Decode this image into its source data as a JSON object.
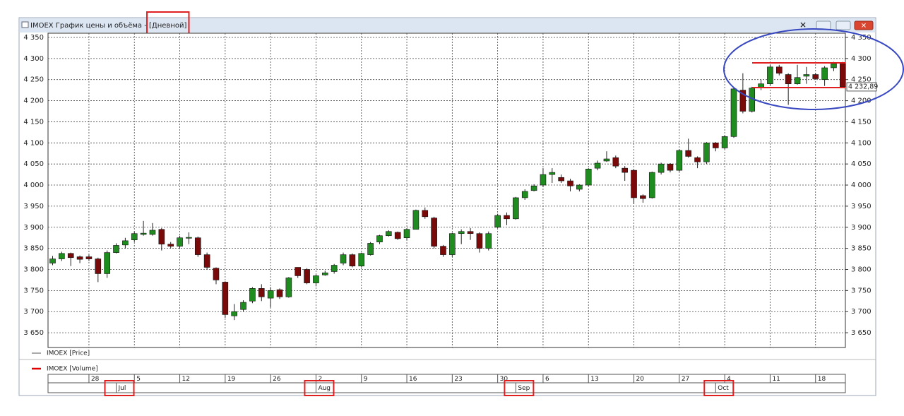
{
  "chart_data": {
    "type": "candlestick",
    "title": "IMOEX График цены и объёма - ",
    "period": "[Дневной]",
    "categories": [
      null,
      null,
      null,
      null,
      "28",
      null,
      null,
      null,
      null,
      "5",
      null,
      null,
      null,
      null,
      "12",
      null,
      null,
      null,
      null,
      "19",
      null,
      null,
      null,
      null,
      "26",
      null,
      null,
      null,
      null,
      "2",
      null,
      null,
      null,
      null,
      "9",
      null,
      null,
      null,
      null,
      "16",
      null,
      null,
      null,
      null,
      "23",
      null,
      null,
      null,
      null,
      "30",
      null,
      null,
      null,
      null,
      "6",
      null,
      null,
      null,
      null,
      "13",
      null,
      null,
      null,
      null,
      "20",
      null,
      null,
      null,
      null,
      "27",
      null,
      null,
      null,
      null,
      "4",
      null,
      null,
      null,
      null,
      "11",
      null,
      null,
      null,
      null,
      "18",
      null,
      null,
      null
    ],
    "months": [
      "Jul",
      "Aug",
      "Sep",
      "Oct"
    ],
    "open": [
      3815,
      3825,
      3838,
      3830,
      3830,
      3825,
      3790,
      3840,
      3858,
      3870,
      3883,
      3883,
      3895,
      3860,
      3855,
      3874,
      3875,
      3835,
      3803,
      3770,
      3690,
      3705,
      3725,
      3755,
      3732,
      3752,
      3735,
      3805,
      3800,
      3768,
      3787,
      3795,
      3815,
      3835,
      3808,
      3835,
      3865,
      3880,
      3888,
      3875,
      3895,
      3940,
      3922,
      3855,
      3835,
      3885,
      3890,
      3885,
      3850,
      3900,
      3928,
      3920,
      3970,
      3987,
      4000,
      4025,
      4018,
      4010,
      3990,
      4000,
      4040,
      4057,
      4065,
      4040,
      4035,
      3975,
      3970,
      4030,
      4050,
      4035,
      4082,
      4065,
      4055,
      4100,
      4088,
      4115,
      4225,
      4175,
      4230,
      4240,
      4280,
      4262,
      4240,
      4258,
      4262,
      4250,
      4278,
      4288
    ],
    "high": [
      3832,
      3842,
      3840,
      3833,
      3835,
      3828,
      3845,
      3862,
      3875,
      3890,
      3915,
      3910,
      3898,
      3865,
      3880,
      3888,
      3878,
      3840,
      3805,
      3772,
      3718,
      3727,
      3758,
      3765,
      3758,
      3755,
      3782,
      3805,
      3803,
      3788,
      3797,
      3813,
      3840,
      3838,
      3840,
      3865,
      3882,
      3893,
      3890,
      3898,
      3942,
      3947,
      3925,
      3858,
      3887,
      3895,
      3898,
      3888,
      3890,
      3932,
      3935,
      3972,
      3990,
      4002,
      4040,
      4040,
      4025,
      4015,
      4002,
      4040,
      4058,
      4080,
      4070,
      4045,
      4038,
      3978,
      4032,
      4053,
      4052,
      4085,
      4110,
      4068,
      4102,
      4102,
      4118,
      4230,
      4265,
      4233,
      4250,
      4285,
      4285,
      4265,
      4285,
      4280,
      4265,
      4282,
      4292,
      4292
    ],
    "low": [
      3810,
      3820,
      3808,
      3815,
      3820,
      3770,
      3780,
      3838,
      3850,
      3865,
      3880,
      3880,
      3845,
      3850,
      3850,
      3860,
      3830,
      3800,
      3765,
      3685,
      3680,
      3700,
      3720,
      3725,
      3710,
      3730,
      3733,
      3780,
      3765,
      3760,
      3785,
      3790,
      3810,
      3805,
      3805,
      3833,
      3860,
      3878,
      3870,
      3870,
      3895,
      3920,
      3850,
      3830,
      3830,
      3860,
      3870,
      3840,
      3845,
      3898,
      3905,
      3918,
      3965,
      3985,
      3995,
      4005,
      4005,
      3985,
      3985,
      3998,
      4035,
      4055,
      4040,
      4010,
      3955,
      3958,
      3968,
      4025,
      4030,
      4032,
      4065,
      4040,
      4050,
      4080,
      4085,
      4112,
      4170,
      4172,
      4225,
      4235,
      4260,
      4190,
      4238,
      4240,
      4250,
      4235,
      4270,
      4230
    ],
    "close": [
      3825,
      3838,
      3828,
      3824,
      3825,
      3790,
      3840,
      3857,
      3868,
      3885,
      3886,
      3893,
      3860,
      3855,
      3875,
      3876,
      3835,
      3805,
      3775,
      3693,
      3700,
      3722,
      3755,
      3735,
      3750,
      3735,
      3780,
      3785,
      3768,
      3785,
      3792,
      3810,
      3835,
      3808,
      3838,
      3862,
      3880,
      3890,
      3873,
      3895,
      3940,
      3925,
      3855,
      3835,
      3885,
      3890,
      3885,
      3850,
      3885,
      3928,
      3920,
      3970,
      3985,
      3998,
      4025,
      4030,
      4010,
      3998,
      4000,
      4038,
      4052,
      4062,
      4045,
      4030,
      3970,
      3968,
      4030,
      4050,
      4035,
      4082,
      4068,
      4055,
      4100,
      4088,
      4115,
      4228,
      4175,
      4230,
      4240,
      4280,
      4265,
      4240,
      4255,
      4262,
      4252,
      4278,
      4288,
      4232.89
    ],
    "up_color": "#1e8c1e",
    "down_color": "#7a0a0a",
    "ylim": [
      3615,
      4360
    ],
    "yticks": [
      {
        "value": 4350,
        "label": "4 350"
      },
      {
        "value": 4300,
        "label": "4 300"
      },
      {
        "value": 4250,
        "label": "4 250"
      },
      {
        "value": 4200,
        "label": "4 200"
      },
      {
        "value": 4150,
        "label": "4 150"
      },
      {
        "value": 4100,
        "label": "4 100"
      },
      {
        "value": 4050,
        "label": "4 050"
      },
      {
        "value": 4000,
        "label": "4 000"
      },
      {
        "value": 3950,
        "label": "3 950"
      },
      {
        "value": 3900,
        "label": "3 900"
      },
      {
        "value": 3850,
        "label": "3 850"
      },
      {
        "value": 3800,
        "label": "3 800"
      },
      {
        "value": 3750,
        "label": "3 750"
      },
      {
        "value": 3700,
        "label": "3 700"
      },
      {
        "value": 3650,
        "label": "3 650"
      }
    ],
    "last_label": {
      "value": 4232.89,
      "label": "4 232,89"
    },
    "grid": true,
    "legend": [
      {
        "name": "IMOEX [Price]",
        "color": "#555555"
      },
      {
        "name": "IMOEX [Volume]",
        "color": "#e00000"
      }
    ]
  }
}
